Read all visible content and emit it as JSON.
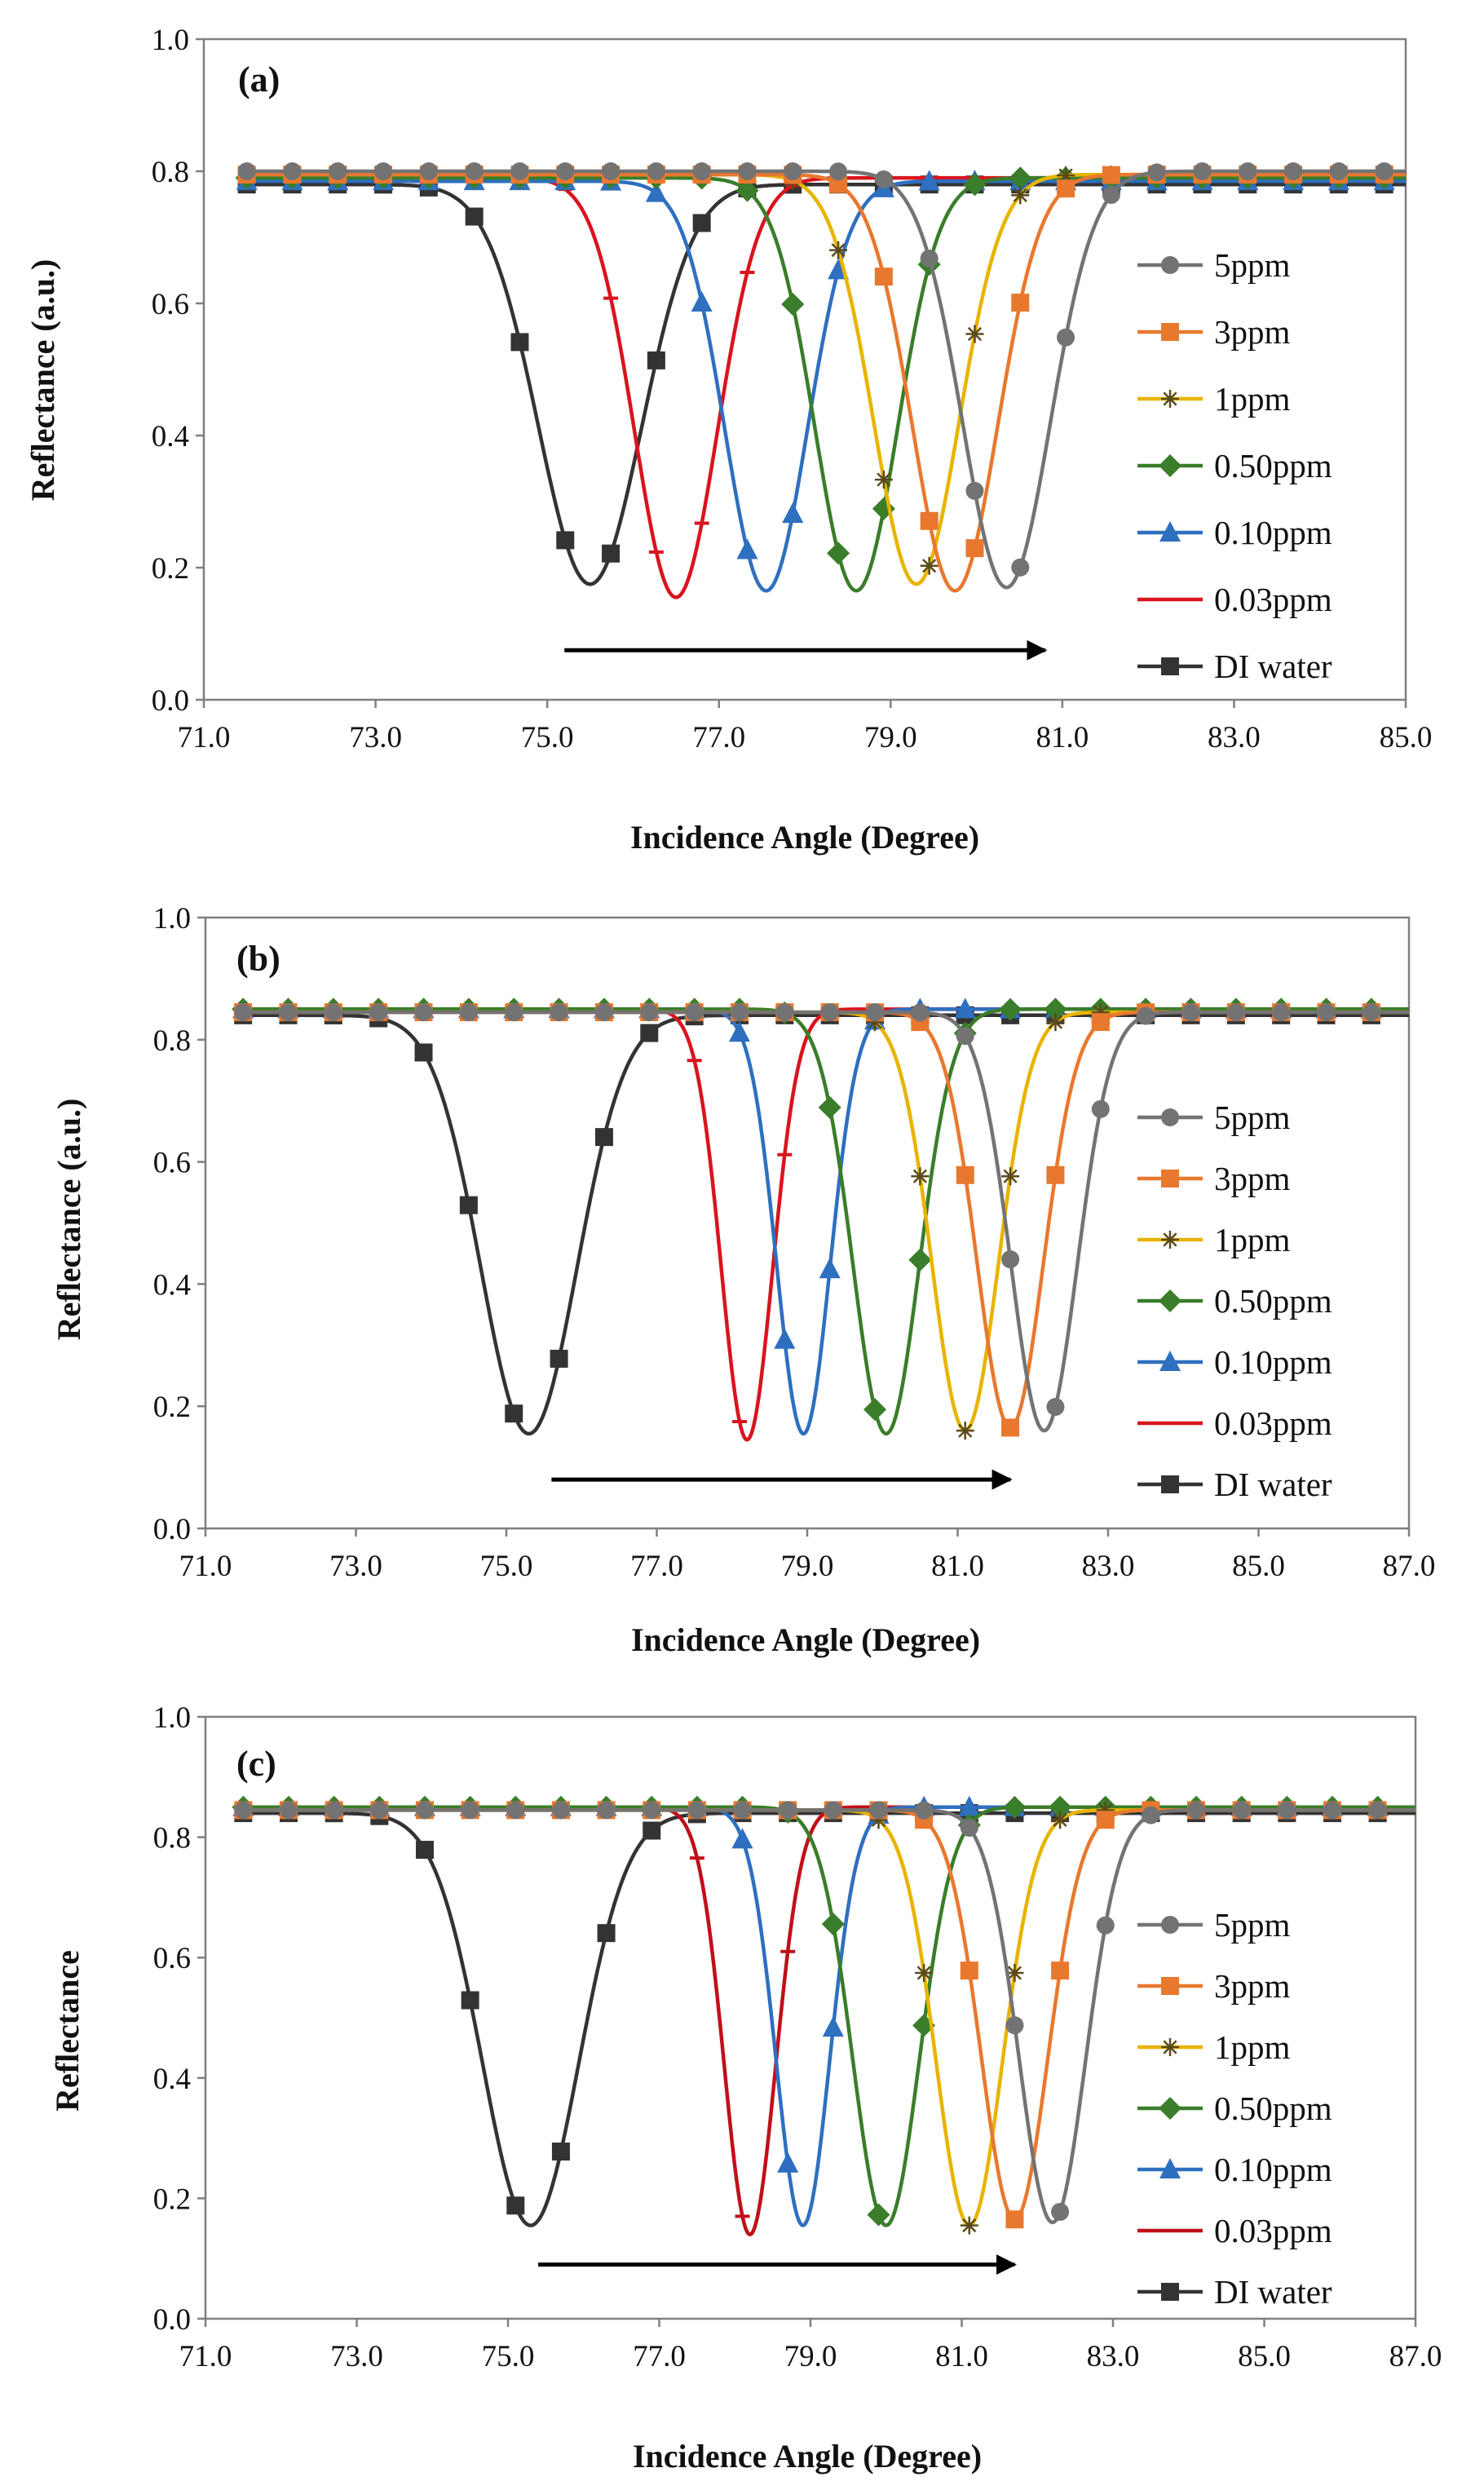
{
  "chart_data": [
    {
      "type": "line",
      "panel_label": "(a)",
      "xlabel": "Incidence Angle (Degree)",
      "ylabel": "Reflectance (a.u.)",
      "xlim": [
        71.0,
        85.0
      ],
      "ylim": [
        0.0,
        1.0
      ],
      "x_ticks": [
        71.0,
        73.0,
        75.0,
        77.0,
        79.0,
        81.0,
        83.0,
        85.0
      ],
      "x_tick_labels": [
        "71.0",
        "73.0",
        "75.0",
        "77.0",
        "79.0",
        "81.0",
        "83.0",
        "85.0"
      ],
      "y_ticks": [
        0.0,
        0.2,
        0.4,
        0.6,
        0.8,
        1.0
      ],
      "y_tick_labels": [
        "0.0",
        "0.2",
        "0.4",
        "0.6",
        "0.8",
        "1.0"
      ],
      "grid": false,
      "legend_position": "right",
      "arrow": {
        "from": [
          75.2,
          0.075
        ],
        "to": [
          80.8,
          0.075
        ]
      },
      "x_start": 71.5,
      "marker_step": 0.53,
      "series": [
        {
          "name": "5ppm",
          "color": "#737373",
          "marker": "circle",
          "baseline": 0.8,
          "min_x": 80.35,
          "min_y": 0.17,
          "width": 0.72
        },
        {
          "name": "3ppm",
          "color": "#E8782E",
          "marker": "square",
          "baseline": 0.795,
          "min_x": 79.75,
          "min_y": 0.165,
          "width": 0.7
        },
        {
          "name": "1ppm",
          "color": "#E8B400",
          "marker": "star",
          "baseline": 0.795,
          "min_x": 79.3,
          "min_y": 0.175,
          "width": 0.7
        },
        {
          "name": "0.50ppm",
          "color": "#3A7D2A",
          "marker": "diamond",
          "baseline": 0.79,
          "min_x": 78.6,
          "min_y": 0.165,
          "width": 0.68
        },
        {
          "name": "0.10ppm",
          "color": "#2E6FC0",
          "marker": "triangle",
          "baseline": 0.785,
          "min_x": 77.55,
          "min_y": 0.165,
          "width": 0.68
        },
        {
          "name": "0.03ppm",
          "color": "#D9141E",
          "marker": "dash",
          "baseline": 0.79,
          "min_x": 76.5,
          "min_y": 0.155,
          "width": 0.68
        },
        {
          "name": "DI water",
          "color": "#333333",
          "marker": "square",
          "baseline": 0.78,
          "min_x": 75.5,
          "min_y": 0.175,
          "width": 0.85
        }
      ]
    },
    {
      "type": "line",
      "panel_label": "(b)",
      "xlabel": "Incidence Angle (Degree)",
      "ylabel": "Reflectance (a.u.)",
      "xlim": [
        71.0,
        87.0
      ],
      "ylim": [
        0.0,
        1.0
      ],
      "x_ticks": [
        71.0,
        73.0,
        75.0,
        77.0,
        79.0,
        81.0,
        83.0,
        85.0,
        87.0
      ],
      "x_tick_labels": [
        "71.0",
        "73.0",
        "75.0",
        "77.0",
        "79.0",
        "81.0",
        "83.0",
        "85.0",
        "87.0"
      ],
      "y_ticks": [
        0.0,
        0.2,
        0.4,
        0.6,
        0.8,
        1.0
      ],
      "y_tick_labels": [
        "0.0",
        "0.2",
        "0.4",
        "0.6",
        "0.8",
        "1.0"
      ],
      "grid": false,
      "legend_position": "right",
      "arrow": {
        "from": [
          75.6,
          0.08
        ],
        "to": [
          81.7,
          0.08
        ]
      },
      "x_start": 71.5,
      "marker_step": 0.6,
      "series": [
        {
          "name": "5ppm",
          "color": "#737373",
          "marker": "circle",
          "baseline": 0.845,
          "min_x": 82.15,
          "min_y": 0.16,
          "width": 0.62
        },
        {
          "name": "3ppm",
          "color": "#E8782E",
          "marker": "square",
          "baseline": 0.845,
          "min_x": 81.7,
          "min_y": 0.165,
          "width": 0.62
        },
        {
          "name": "1ppm",
          "color": "#E8B400",
          "marker": "star",
          "baseline": 0.845,
          "min_x": 81.1,
          "min_y": 0.16,
          "width": 0.62
        },
        {
          "name": "0.50ppm",
          "color": "#3A7D2A",
          "marker": "diamond",
          "baseline": 0.85,
          "min_x": 80.05,
          "min_y": 0.155,
          "width": 0.62
        },
        {
          "name": "0.10ppm",
          "color": "#2E6FC0",
          "marker": "triangle",
          "baseline": 0.85,
          "min_x": 78.95,
          "min_y": 0.155,
          "width": 0.5
        },
        {
          "name": "0.03ppm",
          "color": "#D9141E",
          "marker": "dash",
          "baseline": 0.85,
          "min_x": 78.2,
          "min_y": 0.145,
          "width": 0.48
        },
        {
          "name": "DI water",
          "color": "#333333",
          "marker": "square",
          "baseline": 0.84,
          "min_x": 75.3,
          "min_y": 0.155,
          "width": 0.9
        }
      ]
    },
    {
      "type": "line",
      "panel_label": "(c)",
      "xlabel": "Incidence Angle (Degree)",
      "ylabel": "Reflectance",
      "xlim": [
        71.0,
        87.0
      ],
      "ylim": [
        0.0,
        1.0
      ],
      "x_ticks": [
        71.0,
        73.0,
        75.0,
        77.0,
        79.0,
        81.0,
        83.0,
        85.0,
        87.0
      ],
      "x_tick_labels": [
        "71.0",
        "73.0",
        "75.0",
        "77.0",
        "79.0",
        "81.0",
        "83.0",
        "85.0",
        "87.0"
      ],
      "y_ticks": [
        0.0,
        0.2,
        0.4,
        0.6,
        0.8,
        1.0
      ],
      "y_tick_labels": [
        "0.0",
        "0.2",
        "0.4",
        "0.6",
        "0.8",
        "1.0"
      ],
      "grid": false,
      "legend_position": "right",
      "arrow": {
        "from": [
          75.4,
          0.09
        ],
        "to": [
          81.7,
          0.09
        ]
      },
      "x_start": 71.5,
      "marker_step": 0.6,
      "series": [
        {
          "name": "5ppm",
          "color": "#737373",
          "marker": "circle",
          "baseline": 0.845,
          "min_x": 82.2,
          "min_y": 0.16,
          "width": 0.62
        },
        {
          "name": "3ppm",
          "color": "#E8782E",
          "marker": "square",
          "baseline": 0.845,
          "min_x": 81.7,
          "min_y": 0.165,
          "width": 0.62
        },
        {
          "name": "1ppm",
          "color": "#E8B400",
          "marker": "star",
          "baseline": 0.845,
          "min_x": 81.1,
          "min_y": 0.155,
          "width": 0.62
        },
        {
          "name": "0.50ppm",
          "color": "#3A7D2A",
          "marker": "diamond",
          "baseline": 0.85,
          "min_x": 80.0,
          "min_y": 0.155,
          "width": 0.62
        },
        {
          "name": "0.10ppm",
          "color": "#2E6FC0",
          "marker": "triangle",
          "baseline": 0.85,
          "min_x": 78.9,
          "min_y": 0.155,
          "width": 0.5
        },
        {
          "name": "0.03ppm",
          "color": "#C0101A",
          "marker": "dash",
          "baseline": 0.85,
          "min_x": 78.2,
          "min_y": 0.14,
          "width": 0.48
        },
        {
          "name": "DI water",
          "color": "#333333",
          "marker": "square",
          "baseline": 0.84,
          "min_x": 75.3,
          "min_y": 0.155,
          "width": 0.9
        }
      ]
    }
  ]
}
